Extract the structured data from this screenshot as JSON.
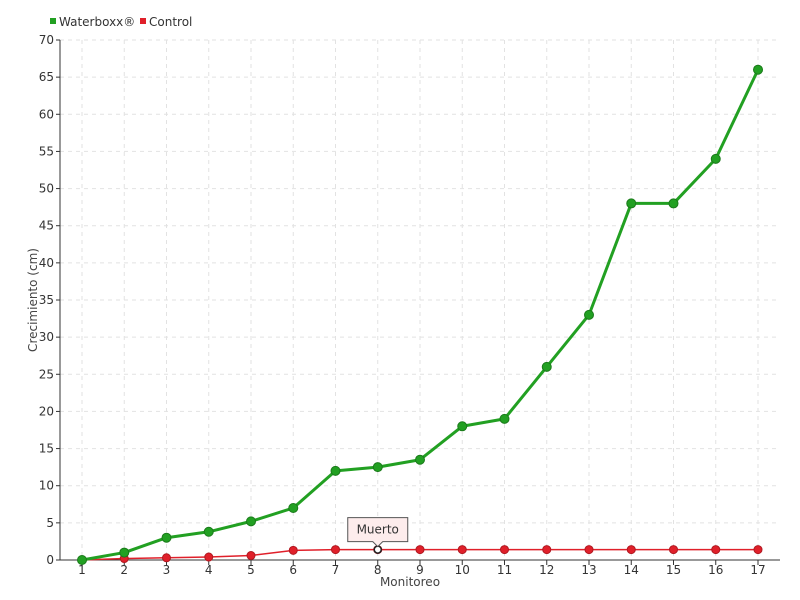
{
  "chart_data": {
    "type": "line",
    "x": [
      "1",
      "2",
      "3",
      "4",
      "5",
      "6",
      "7",
      "8",
      "9",
      "10",
      "11",
      "12",
      "13",
      "14",
      "15",
      "16",
      "17"
    ],
    "xlabel": "Monitoreo",
    "ylabel": "Crecimiento (cm)",
    "ylim": [
      0,
      70
    ],
    "yticks": [
      0,
      5,
      10,
      15,
      20,
      25,
      30,
      35,
      40,
      45,
      50,
      55,
      60,
      65,
      70
    ],
    "grid": true,
    "legend_position": "top-left",
    "series": [
      {
        "name": "Waterboxx®",
        "color": "#22a022",
        "values": [
          0,
          1,
          3,
          3.8,
          5.2,
          7,
          12,
          12.5,
          13.5,
          18,
          19,
          26,
          33,
          48,
          48,
          54,
          66
        ]
      },
      {
        "name": "Control",
        "color": "#e0202a",
        "values": [
          0,
          0.2,
          0.3,
          0.4,
          0.6,
          1.3,
          1.4,
          1.4,
          1.4,
          1.4,
          1.4,
          1.4,
          1.4,
          1.4,
          1.4,
          1.4,
          1.4
        ]
      }
    ],
    "annotation": {
      "text": "Muerto",
      "series": "Control",
      "x": "8"
    }
  }
}
